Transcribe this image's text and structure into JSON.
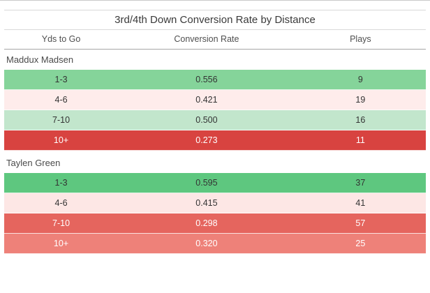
{
  "title": "3rd/4th Down Conversion Rate by Distance",
  "columns": [
    "Yds to Go",
    "Conversion Rate",
    "Plays"
  ],
  "groups": [
    {
      "player": "Maddux Madsen",
      "rows": [
        {
          "yds": "1-3",
          "rate": "0.556",
          "plays": "9",
          "bg": "#85d49a",
          "fg": "#333333"
        },
        {
          "yds": "4-6",
          "rate": "0.421",
          "plays": "19",
          "bg": "#feeceb",
          "fg": "#333333"
        },
        {
          "yds": "7-10",
          "rate": "0.500",
          "plays": "16",
          "bg": "#c2e6cc",
          "fg": "#333333"
        },
        {
          "yds": "10+",
          "rate": "0.273",
          "plays": "11",
          "bg": "#d84340",
          "fg": "#ffffff"
        }
      ]
    },
    {
      "player": "Taylen Green",
      "rows": [
        {
          "yds": "1-3",
          "rate": "0.595",
          "plays": "37",
          "bg": "#5ec77f",
          "fg": "#333333"
        },
        {
          "yds": "4-6",
          "rate": "0.415",
          "plays": "41",
          "bg": "#fde7e5",
          "fg": "#333333"
        },
        {
          "yds": "7-10",
          "rate": "0.298",
          "plays": "57",
          "bg": "#e5655e",
          "fg": "#ffffff"
        },
        {
          "yds": "10+",
          "rate": "0.320",
          "plays": "25",
          "bg": "#ee8179",
          "fg": "#ffffff"
        }
      ]
    }
  ],
  "colors": {
    "strong_green": "#5ec77f",
    "medium_green": "#85d49a",
    "pale_green": "#c2e6cc",
    "pale_pink": "#feeceb",
    "salmon_red": "#ee8179",
    "medium_red": "#e5655e",
    "strong_red": "#d84340",
    "divider_light": "#d9d9d9",
    "divider_dark": "#a6a6a6"
  },
  "chart_data": {
    "type": "table",
    "title": "3rd/4th Down Conversion Rate by Distance",
    "columns": [
      "Yds to Go",
      "Conversion Rate",
      "Plays"
    ],
    "series": [
      {
        "name": "Maddux Madsen",
        "categories": [
          "1-3",
          "4-6",
          "7-10",
          "10+"
        ],
        "conversion_rate": [
          0.556,
          0.421,
          0.5,
          0.273
        ],
        "plays": [
          9,
          19,
          16,
          11
        ]
      },
      {
        "name": "Taylen Green",
        "categories": [
          "1-3",
          "4-6",
          "7-10",
          "10+"
        ],
        "conversion_rate": [
          0.595,
          0.415,
          0.298,
          0.32
        ],
        "plays": [
          37,
          41,
          57,
          25
        ]
      }
    ],
    "legend_position": "none",
    "color_encoding": "cell background diverging red (low rate) to green (high rate)"
  }
}
